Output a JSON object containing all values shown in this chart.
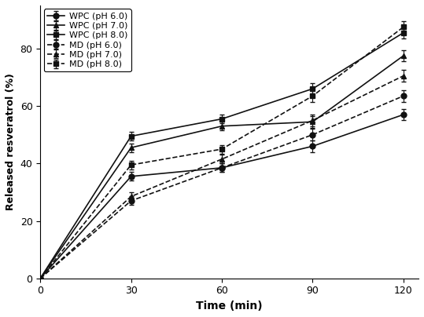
{
  "x": [
    0,
    30,
    60,
    90,
    120
  ],
  "series": [
    {
      "label": "WPC (pH 6.0)",
      "y": [
        0,
        35.5,
        38.5,
        46.0,
        57.0
      ],
      "yerr": [
        0,
        1.5,
        1.5,
        2.0,
        2.0
      ],
      "linestyle": "-",
      "marker": "o",
      "color": "#111111"
    },
    {
      "label": "WPC (pH 7.0)",
      "y": [
        0,
        45.5,
        53.0,
        54.5,
        77.5
      ],
      "yerr": [
        0,
        1.5,
        1.5,
        2.0,
        2.0
      ],
      "linestyle": "-",
      "marker": "^",
      "color": "#111111"
    },
    {
      "label": "WPC (pH 8.0)",
      "y": [
        0,
        49.5,
        55.5,
        66.0,
        85.5
      ],
      "yerr": [
        0,
        1.5,
        1.5,
        2.0,
        2.0
      ],
      "linestyle": "-",
      "marker": "s",
      "color": "#111111"
    },
    {
      "label": "MD (pH 6.0)",
      "y": [
        0,
        27.0,
        38.5,
        50.0,
        63.5
      ],
      "yerr": [
        0,
        1.5,
        1.5,
        2.0,
        2.0
      ],
      "linestyle": "--",
      "marker": "o",
      "color": "#111111"
    },
    {
      "label": "MD (pH 7.0)",
      "y": [
        0,
        28.5,
        41.5,
        55.0,
        70.5
      ],
      "yerr": [
        0,
        1.5,
        1.5,
        2.0,
        2.0
      ],
      "linestyle": "--",
      "marker": "^",
      "color": "#111111"
    },
    {
      "label": "MD (pH 8.0)",
      "y": [
        0,
        39.5,
        45.0,
        63.5,
        87.5
      ],
      "yerr": [
        0,
        1.5,
        1.5,
        2.0,
        2.0
      ],
      "linestyle": "--",
      "marker": "s",
      "color": "#111111"
    }
  ],
  "xlabel": "Time (min)",
  "ylabel": "Released resveratrol (%)",
  "xlim": [
    0,
    125
  ],
  "ylim": [
    0,
    95
  ],
  "xticks": [
    0,
    30,
    60,
    90,
    120
  ],
  "yticks": [
    0,
    20,
    40,
    60,
    80
  ],
  "legend_loc": "upper left",
  "axis_fontsize": 10,
  "tick_fontsize": 9,
  "legend_fontsize": 8,
  "markersize": 5,
  "linewidth": 1.2,
  "capsize": 2,
  "elinewidth": 0.8
}
